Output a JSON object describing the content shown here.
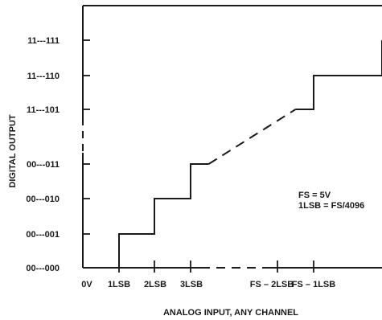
{
  "chart_data": {
    "type": "line",
    "title": "",
    "xlabel": "ANALOG INPUT, ANY CHANNEL",
    "ylabel": "DIGITAL OUTPUT",
    "x_ticks": [
      "0V",
      "1LSB",
      "2LSB",
      "3LSB",
      "FS – 2LSB",
      "FS – 1LSB"
    ],
    "y_ticks": [
      "00---000",
      "00---001",
      "00---010",
      "00---011",
      "11---101",
      "11---110",
      "11---111"
    ],
    "annotations": [
      "FS = 5V",
      "1LSB = FS/4096"
    ],
    "series": [
      {
        "style": "staircase",
        "solid_lower": [
          [
            0,
            0
          ],
          [
            1,
            0
          ],
          [
            1,
            1
          ],
          [
            2,
            1
          ],
          [
            2,
            2
          ],
          [
            3,
            2
          ],
          [
            3,
            3
          ],
          [
            3.5,
            3
          ]
        ],
        "dashed_middle": [
          [
            3.5,
            3
          ],
          [
            5.5,
            4
          ]
        ],
        "solid_upper": [
          [
            5.5,
            4
          ],
          [
            6,
            4
          ],
          [
            6,
            5
          ],
          [
            7,
            5
          ],
          [
            7,
            6
          ],
          [
            8,
            6
          ]
        ]
      }
    ],
    "grid": false,
    "legend": "none"
  }
}
